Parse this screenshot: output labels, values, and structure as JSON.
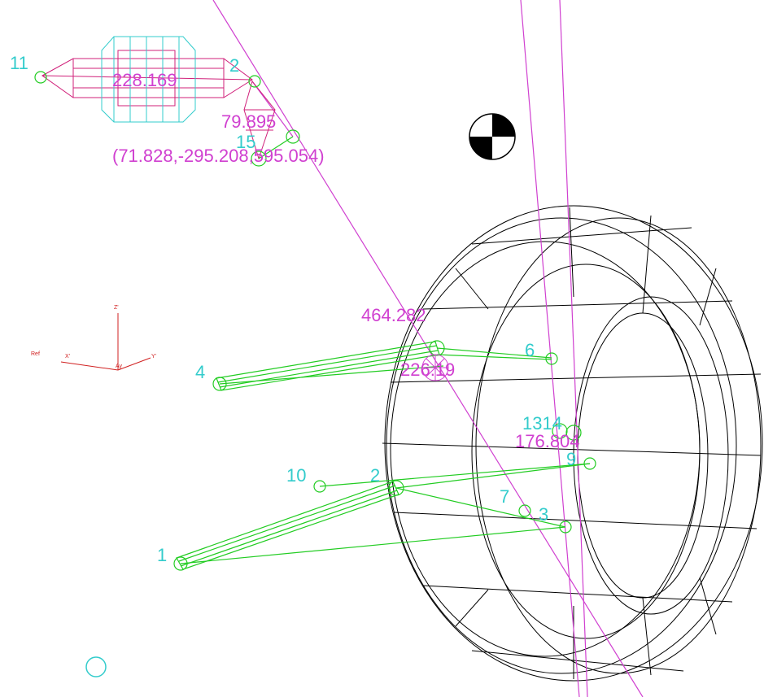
{
  "viewport": {
    "labels": {
      "marker_11": "11",
      "marker_12": "2",
      "shock_value": "228.169",
      "value_a": "79.895",
      "marker_15": "15",
      "coordinates": "(71.828,-295.208,595.054)",
      "value_b": "464.282",
      "marker_4": "4",
      "marker_6": "6",
      "value_c": "226.19",
      "marker_1314": "1314",
      "value_d": "176.804",
      "marker_10": "10",
      "marker_2": "2",
      "marker_9": "9",
      "marker_7": "7",
      "marker_3": "3",
      "marker_1": "1"
    },
    "triad": {
      "z": "Z'",
      "x": "X'",
      "y": "Y'",
      "origin": "Ay",
      "ref": "Ref"
    }
  }
}
